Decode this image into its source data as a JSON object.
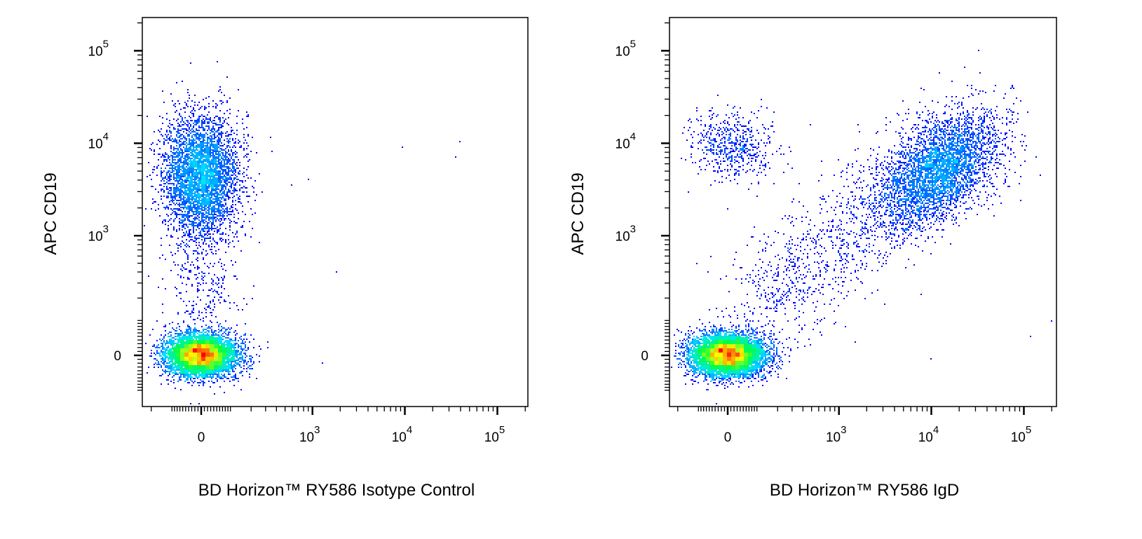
{
  "chart_data": [
    {
      "type": "scatter",
      "subtype": "flow-cytometry-pseudocolor-density",
      "xlabel": "BD Horizon™ RY586 Isotype Control",
      "ylabel": "APC CD19",
      "xscale": "biexponential",
      "yscale": "biexponential",
      "xlim": [
        -250,
        210000
      ],
      "ylim": [
        -170,
        230000
      ],
      "x_ticks": [
        {
          "value": 0,
          "label": "0"
        },
        {
          "value": 1000,
          "label": "10",
          "exp": "3"
        },
        {
          "value": 10000,
          "label": "10",
          "exp": "4"
        },
        {
          "value": 100000,
          "label": "10",
          "exp": "5"
        }
      ],
      "y_ticks": [
        {
          "value": 0,
          "label": "0"
        },
        {
          "value": 1000,
          "label": "10",
          "exp": "3"
        },
        {
          "value": 10000,
          "label": "10",
          "exp": "4"
        },
        {
          "value": 100000,
          "label": "10",
          "exp": "5"
        }
      ],
      "grid": false,
      "colormap": [
        "#0000ff",
        "#00e5ff",
        "#00ff40",
        "#ffff00",
        "#ff0000"
      ],
      "populations": [
        {
          "x": 0,
          "y": 0,
          "fraction": 0.7
        },
        {
          "x": 0,
          "y": 4500,
          "fraction": 0.27
        },
        {
          "x": 0,
          "y": 300,
          "fraction": 0.025
        }
      ],
      "outliers": [
        [
          9500,
          9000
        ],
        [
          40000,
          10500
        ],
        [
          35000,
          7000
        ],
        [
          600,
          3500
        ],
        [
          900,
          4000
        ],
        [
          1800,
          400
        ],
        [
          1300,
          -20
        ]
      ]
    },
    {
      "type": "scatter",
      "subtype": "flow-cytometry-pseudocolor-density",
      "xlabel": "BD Horizon™ RY586 IgD",
      "ylabel": "APC CD19",
      "xscale": "biexponential",
      "yscale": "biexponential",
      "xlim": [
        -250,
        210000
      ],
      "ylim": [
        -170,
        230000
      ],
      "x_ticks": [
        {
          "value": 0,
          "label": "0"
        },
        {
          "value": 1000,
          "label": "10",
          "exp": "3"
        },
        {
          "value": 10000,
          "label": "10",
          "exp": "4"
        },
        {
          "value": 100000,
          "label": "10",
          "exp": "5"
        }
      ],
      "y_ticks": [
        {
          "value": 0,
          "label": "0"
        },
        {
          "value": 1000,
          "label": "10",
          "exp": "3"
        },
        {
          "value": 10000,
          "label": "10",
          "exp": "4"
        },
        {
          "value": 100000,
          "label": "10",
          "exp": "5"
        }
      ],
      "grid": false,
      "colormap": [
        "#0000ff",
        "#00e5ff",
        "#00ff40",
        "#ffff00",
        "#ff0000"
      ],
      "populations": [
        {
          "x": 0,
          "y": 0,
          "fraction": 0.66
        },
        {
          "x": 20,
          "y": 9500,
          "fraction": 0.035
        },
        {
          "x": 12000,
          "y": 5000,
          "fraction": 0.22
        },
        {
          "x": 1000,
          "y": 500,
          "fraction": 0.085
        }
      ],
      "outliers": [
        [
          32000,
          100000
        ],
        [
          120000,
          50
        ],
        [
          200000,
          100
        ],
        [
          10000,
          -10
        ],
        [
          150000,
          4500
        ]
      ]
    }
  ]
}
